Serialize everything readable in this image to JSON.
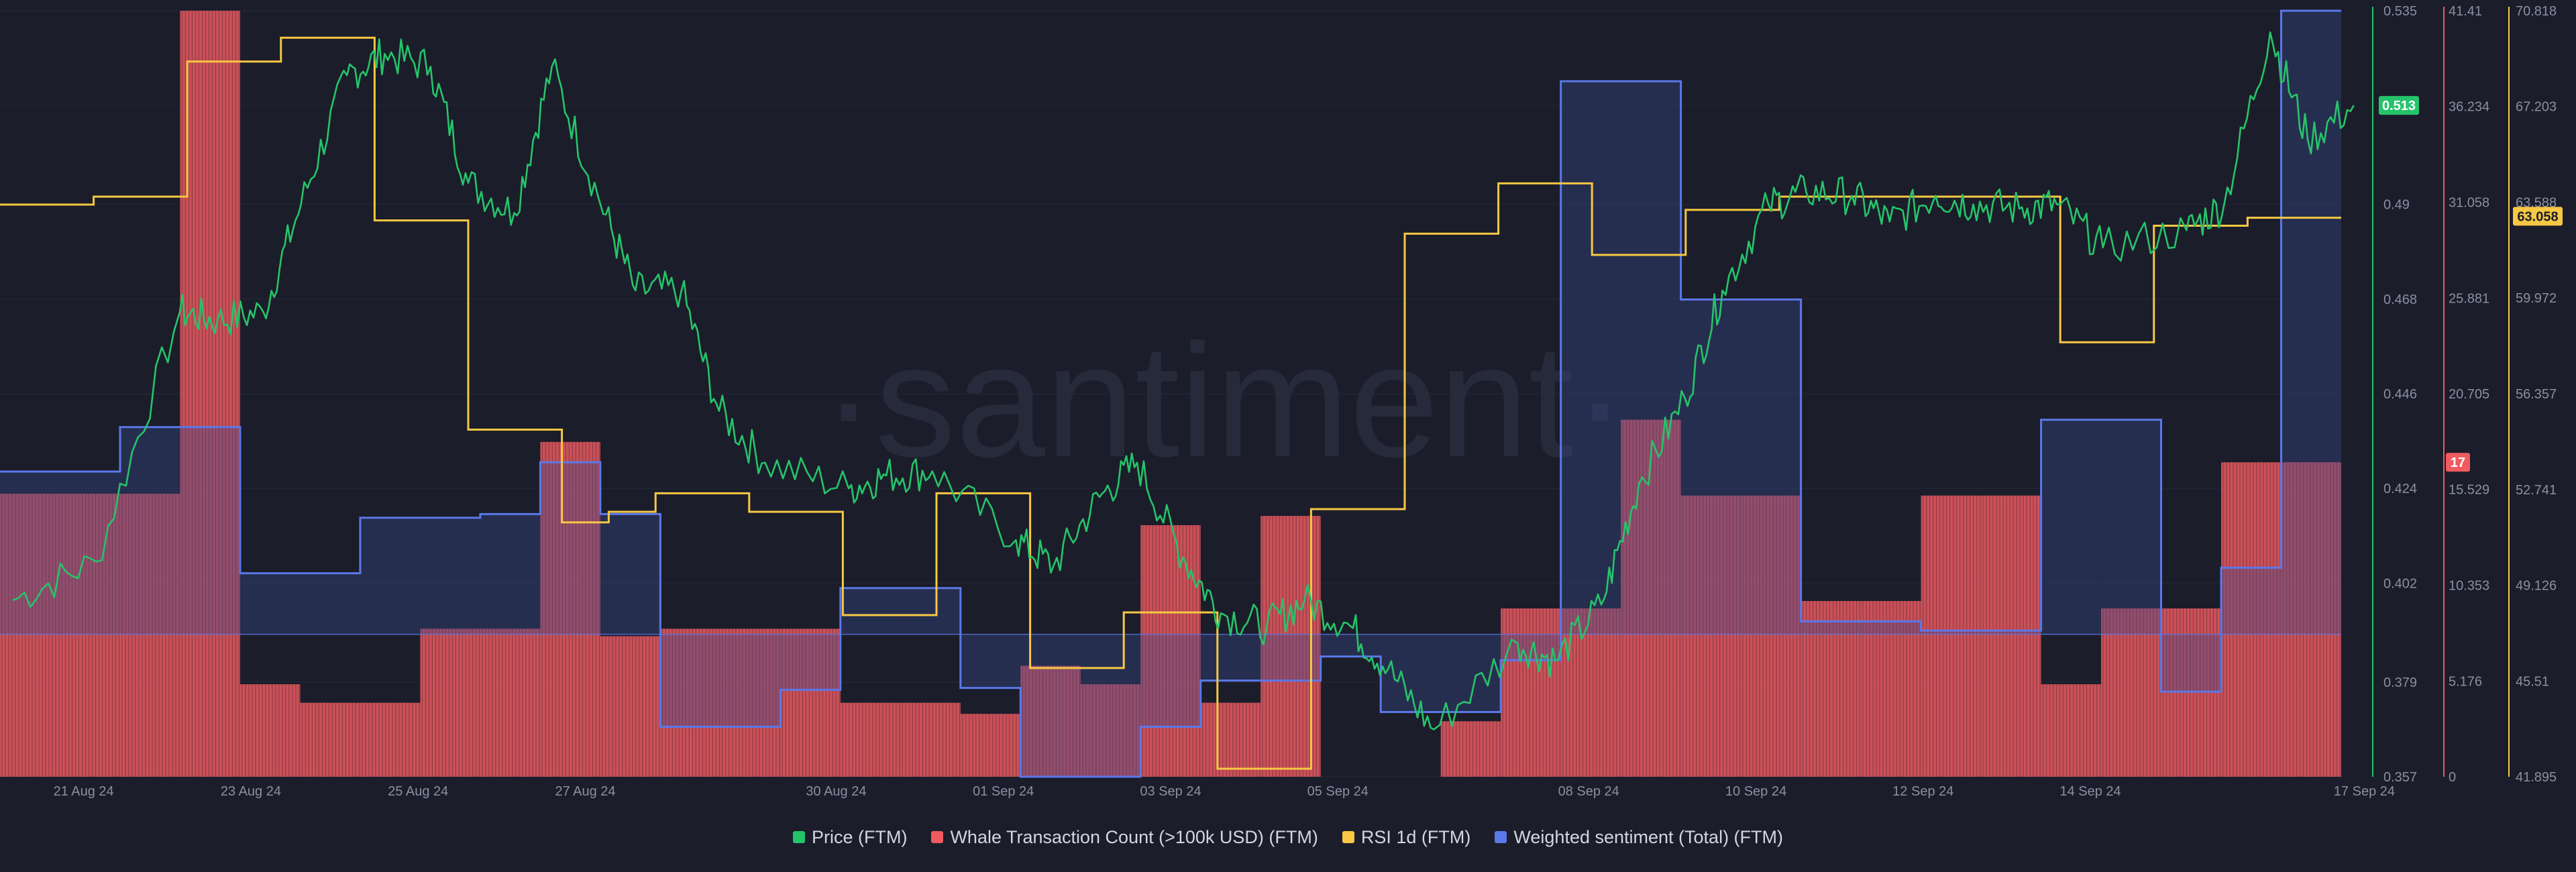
{
  "watermark": "·santiment·",
  "legend": [
    {
      "label": "Price (FTM)",
      "color": "#26c46a"
    },
    {
      "label": "Whale Transaction Count (>100k USD) (FTM)",
      "color": "#ef5b61"
    },
    {
      "label": "RSI 1d (FTM)",
      "color": "#f7c843"
    },
    {
      "label": "Weighted sentiment (Total) (FTM)",
      "color": "#5b78e8"
    }
  ],
  "chart_data": {
    "type": "line",
    "x_start": "2024-08-20",
    "x_end": "2024-09-17",
    "x_tick_labels": [
      "21 Aug 24",
      "23 Aug 24",
      "25 Aug 24",
      "27 Aug 24",
      "30 Aug 24",
      "01 Sep 24",
      "03 Sep 24",
      "05 Sep 24",
      "08 Sep 24",
      "10 Sep 24",
      "12 Sep 24",
      "14 Sep 24",
      "17 Sep 24"
    ],
    "axes": {
      "price": {
        "ticks": [
          "0.535",
          "0.513",
          "0.49",
          "0.468",
          "0.446",
          "0.424",
          "0.402",
          "0.379",
          "0.357"
        ],
        "min": 0.357,
        "max": 0.535
      },
      "whale": {
        "ticks": [
          "41.41",
          "36.234",
          "31.058",
          "25.881",
          "20.705",
          "15.529",
          "10.353",
          "5.176",
          "0"
        ],
        "min": 0,
        "max": 41.41
      },
      "rsi": {
        "ticks": [
          "70.818",
          "67.203",
          "63.588",
          "59.972",
          "56.357",
          "52.741",
          "49.126",
          "45.51",
          "41.895"
        ],
        "min": 41.895,
        "max": 70.818
      }
    },
    "current_values": {
      "price": "0.513",
      "whale": "17",
      "rsi": "63.058"
    },
    "series": [
      {
        "name": "Whale Transaction Count (>100k USD) (FTM)",
        "axis": "whale",
        "kind": "step-bar",
        "color": "#ef5b61",
        "values": [
          15.3,
          15.3,
          15.3,
          41.41,
          5.0,
          4.0,
          4.0,
          8.0,
          8.0,
          18.1,
          7.6,
          8.0,
          8.0,
          8.0,
          4.0,
          4.0,
          3.4,
          6.0,
          5.0,
          13.6,
          4.0,
          14.1,
          0.0,
          0.0,
          3.0,
          9.1,
          9.1,
          19.3,
          15.2,
          15.2,
          9.5,
          9.5,
          15.2,
          15.2,
          5.0,
          9.1,
          9.1,
          17.0,
          17.0
        ]
      },
      {
        "name": "Weighted sentiment (Total) (FTM)",
        "axis": "whale",
        "kind": "step-area",
        "color": "#5b78e8",
        "values": [
          16.5,
          16.5,
          18.9,
          18.9,
          11.0,
          11.0,
          14.0,
          14.0,
          14.2,
          17.0,
          14.2,
          2.7,
          2.7,
          4.7,
          10.2,
          10.2,
          4.8,
          0,
          0,
          2.7,
          5.2,
          5.2,
          6.5,
          3.5,
          3.5,
          6.3,
          37.6,
          37.6,
          25.8,
          25.8,
          8.4,
          8.4,
          7.9,
          7.9,
          19.3,
          19.3,
          4.6,
          11.3,
          41.41
        ]
      },
      {
        "name": "RSI 1d (FTM)",
        "axis": "rsi",
        "kind": "step-line",
        "color": "#f7c843",
        "values": [
          63.5,
          63.5,
          63.8,
          63.8,
          68.9,
          68.9,
          69.8,
          69.8,
          62.9,
          62.9,
          55.0,
          55.0,
          51.5,
          51.9,
          52.6,
          52.6,
          51.9,
          51.9,
          48.0,
          48.0,
          52.6,
          52.6,
          46.0,
          46.0,
          48.1,
          48.1,
          42.2,
          42.2,
          52.0,
          52.0,
          62.4,
          62.4,
          64.3,
          64.3,
          61.6,
          61.6,
          63.3,
          63.3,
          63.8,
          63.8,
          63.8,
          63.8,
          63.8,
          63.8,
          58.3,
          58.3,
          62.7,
          62.7,
          63.0,
          63.0
        ]
      },
      {
        "name": "Price (FTM)",
        "axis": "price",
        "kind": "line",
        "color": "#26c46a",
        "x": [
          "2024-08-20",
          "2024-08-21",
          "2024-08-22",
          "2024-08-22",
          "2024-08-23",
          "2024-08-23",
          "2024-08-24",
          "2024-08-24",
          "2024-08-25",
          "2024-08-25",
          "2024-08-26",
          "2024-08-26",
          "2024-08-27",
          "2024-08-27",
          "2024-08-28",
          "2024-08-28",
          "2024-08-29",
          "2024-08-30",
          "2024-08-30",
          "2024-08-31",
          "2024-09-01",
          "2024-09-01",
          "2024-09-02",
          "2024-09-02",
          "2024-09-03",
          "2024-09-03",
          "2024-09-04",
          "2024-09-04",
          "2024-09-05",
          "2024-09-05",
          "2024-09-06",
          "2024-09-07",
          "2024-09-07",
          "2024-09-08",
          "2024-09-08",
          "2024-09-09",
          "2024-09-09",
          "2024-09-10",
          "2024-09-10",
          "2024-09-11",
          "2024-09-11",
          "2024-09-12",
          "2024-09-12",
          "2024-09-13",
          "2024-09-13",
          "2024-09-14",
          "2024-09-15",
          "2024-09-15",
          "2024-09-16",
          "2024-09-16",
          "2024-09-17"
        ],
        "values": [
          0.398,
          0.407,
          0.465,
          0.463,
          0.465,
          0.49,
          0.52,
          0.525,
          0.522,
          0.495,
          0.488,
          0.522,
          0.492,
          0.47,
          0.47,
          0.442,
          0.43,
          0.424,
          0.427,
          0.428,
          0.412,
          0.406,
          0.422,
          0.43,
          0.408,
          0.395,
          0.392,
          0.398,
          0.392,
          0.382,
          0.368,
          0.388,
          0.384,
          0.397,
          0.425,
          0.445,
          0.47,
          0.49,
          0.493,
          0.492,
          0.486,
          0.492,
          0.49,
          0.489,
          0.49,
          0.48,
          0.484,
          0.49,
          0.53,
          0.505,
          0.513
        ]
      }
    ]
  }
}
